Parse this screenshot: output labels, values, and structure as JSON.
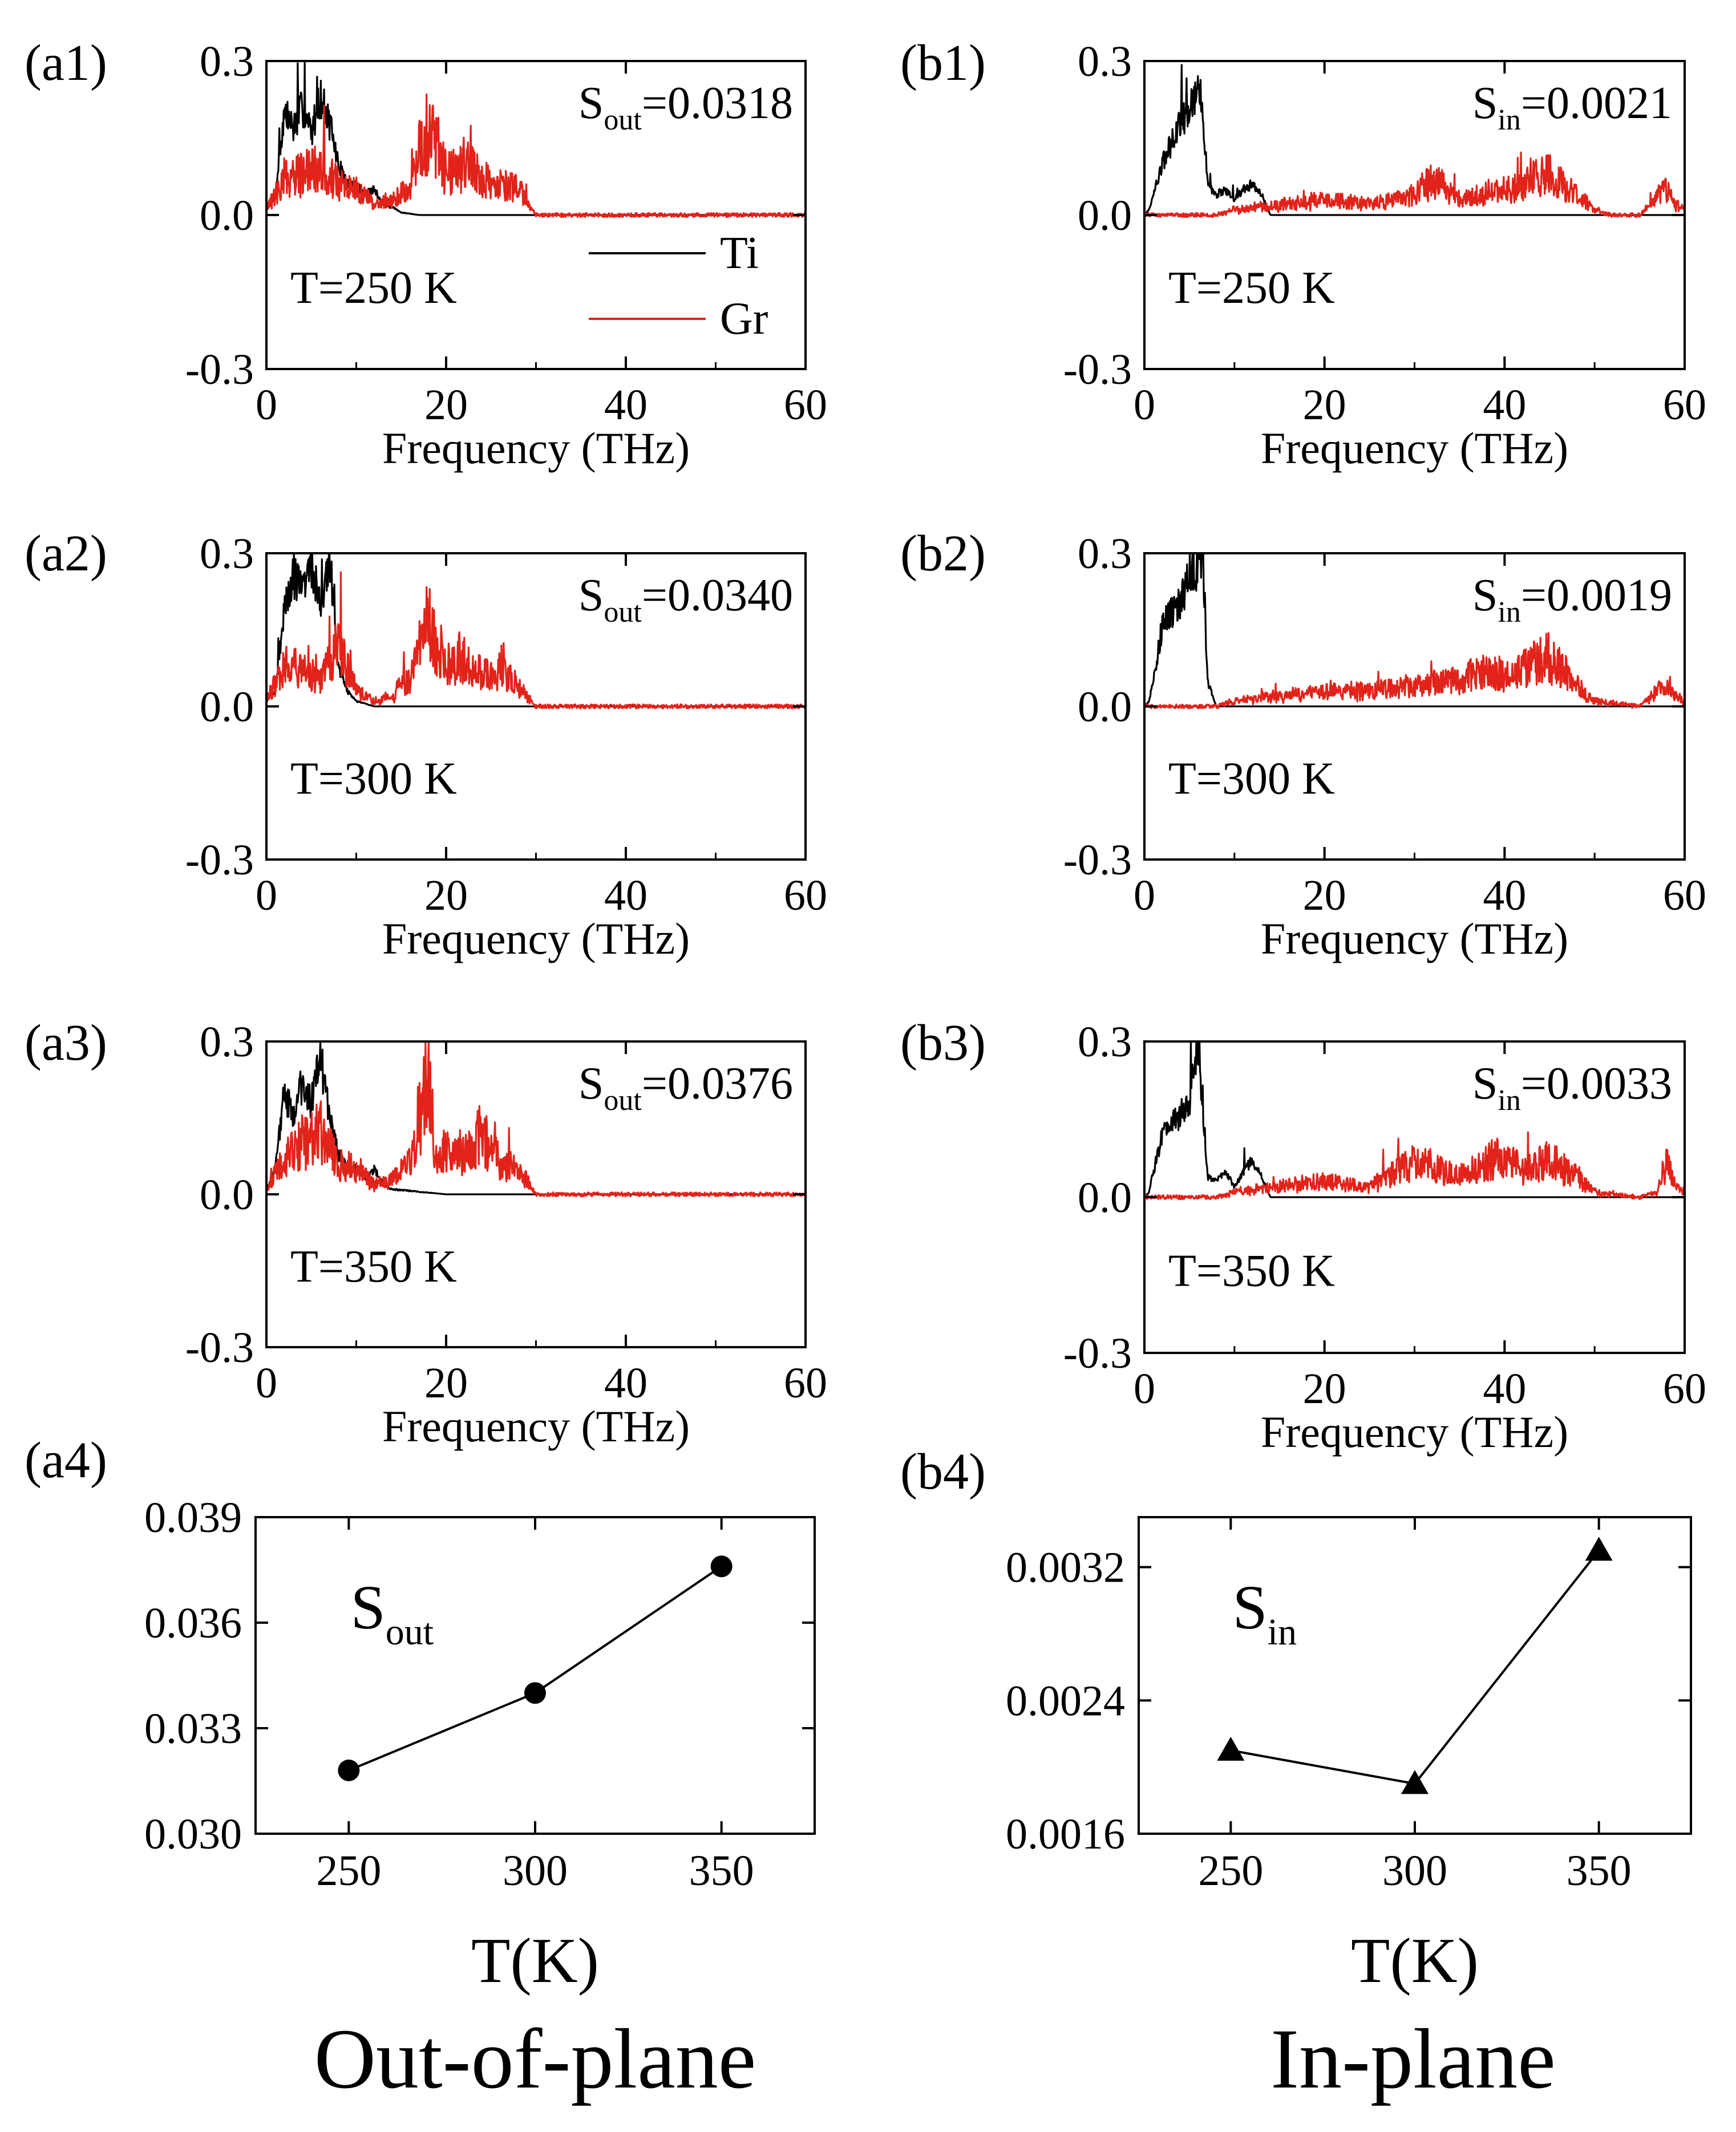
{
  "figure_captions": [
    "Out-of-plane",
    "In-plane"
  ],
  "colors": {
    "ti": "#000000",
    "gr": "#e2231a"
  },
  "chart_data": [
    {
      "id": "a1",
      "type": "line",
      "panel_label": "(a1)",
      "xlabel": "Frequency (THz)",
      "xlim": [
        0,
        60
      ],
      "ylim": [
        -0.3,
        0.3
      ],
      "xticks": [
        "0",
        "20",
        "40",
        "60"
      ],
      "yticks": [
        "0.3",
        "0.0",
        "-0.3"
      ],
      "temperature": "T=250 K",
      "s_main": "S",
      "s_sub": "out",
      "s_value": "=0.0318",
      "legend": [
        "Ti",
        "Gr"
      ],
      "series": [
        {
          "name": "Ti",
          "x": [
            0,
            1,
            2,
            3,
            4,
            5,
            6,
            7,
            8,
            9,
            10,
            11,
            12,
            13,
            14,
            15,
            17,
            20,
            30,
            60
          ],
          "y": [
            0.01,
            0.04,
            0.2,
            0.17,
            0.21,
            0.16,
            0.23,
            0.18,
            0.1,
            0.06,
            0.06,
            0.04,
            0.05,
            0.02,
            0.015,
            0.005,
            0,
            0,
            0,
            0
          ]
        },
        {
          "name": "Gr",
          "x": [
            0,
            2,
            4,
            6,
            8,
            10,
            12,
            14,
            16,
            18,
            20,
            22,
            24,
            26,
            28,
            30,
            40,
            50,
            60
          ],
          "y": [
            0.01,
            0.07,
            0.08,
            0.1,
            0.06,
            0.05,
            0.02,
            0.03,
            0.05,
            0.18,
            0.08,
            0.1,
            0.07,
            0.06,
            0.05,
            0,
            0,
            0,
            0
          ]
        }
      ]
    },
    {
      "id": "b1",
      "type": "line",
      "panel_label": "(b1)",
      "xlabel": "Frequency (THz)",
      "xlim": [
        0,
        60
      ],
      "ylim": [
        -0.3,
        0.3
      ],
      "xticks": [
        "0",
        "20",
        "40",
        "60"
      ],
      "yticks": [
        "0.3",
        "0.0",
        "-0.3"
      ],
      "temperature": "T=250 K",
      "s_main": "S",
      "s_sub": "in",
      "s_value": "=0.0021",
      "series": [
        {
          "name": "Ti",
          "x": [
            0,
            0.5,
            1,
            2,
            3,
            4,
            5,
            6,
            6.5,
            7,
            8,
            9,
            10,
            11,
            12,
            13,
            14,
            20,
            60
          ],
          "y": [
            0,
            0.01,
            0.04,
            0.1,
            0.14,
            0.18,
            0.2,
            0.26,
            0.2,
            0.06,
            0.04,
            0.05,
            0.03,
            0.05,
            0.06,
            0.04,
            0,
            0,
            0
          ]
        },
        {
          "name": "Gr",
          "x": [
            0,
            8,
            10,
            15,
            20,
            25,
            30,
            32,
            35,
            40,
            45,
            48,
            50,
            52,
            55,
            58,
            59,
            60
          ],
          "y": [
            0,
            0,
            0.01,
            0.02,
            0.03,
            0.02,
            0.04,
            0.07,
            0.03,
            0.05,
            0.08,
            0.04,
            0.01,
            0,
            0,
            0.05,
            0.02,
            0.01
          ]
        }
      ]
    },
    {
      "id": "a2",
      "type": "line",
      "panel_label": "(a2)",
      "xlabel": "Frequency (THz)",
      "xlim": [
        0,
        60
      ],
      "ylim": [
        -0.3,
        0.3
      ],
      "xticks": [
        "0",
        "20",
        "40",
        "60"
      ],
      "yticks": [
        "0.3",
        "0.0",
        "-0.3"
      ],
      "temperature": "T=300 K",
      "s_main": "S",
      "s_sub": "out",
      "s_value": "=0.0340",
      "series": [
        {
          "name": "Ti",
          "x": [
            0,
            1,
            2,
            3,
            4,
            5,
            6,
            7,
            8,
            9,
            10,
            12,
            14,
            20,
            30,
            60
          ],
          "y": [
            0.01,
            0.03,
            0.2,
            0.26,
            0.22,
            0.28,
            0.2,
            0.3,
            0.08,
            0.03,
            0.01,
            0,
            0,
            0,
            0,
            0
          ]
        },
        {
          "name": "Gr",
          "x": [
            0,
            2,
            4,
            6,
            8,
            10,
            12,
            14,
            16,
            18,
            20,
            22,
            24,
            26,
            28,
            30,
            40,
            50,
            60
          ],
          "y": [
            0.01,
            0.08,
            0.07,
            0.05,
            0.12,
            0.03,
            0.01,
            0.02,
            0.06,
            0.16,
            0.08,
            0.1,
            0.06,
            0.07,
            0.04,
            0,
            0,
            0,
            0
          ]
        }
      ]
    },
    {
      "id": "b2",
      "type": "line",
      "panel_label": "(b2)",
      "xlabel": "Frequency (THz)",
      "xlim": [
        0,
        60
      ],
      "ylim": [
        -0.3,
        0.3
      ],
      "xticks": [
        "0",
        "20",
        "40",
        "60"
      ],
      "yticks": [
        "0.3",
        "0.0",
        "-0.3"
      ],
      "temperature": "T=300 K",
      "s_main": "S",
      "s_sub": "in",
      "s_value": "=0.0019",
      "series": [
        {
          "name": "Ti",
          "x": [
            0,
            0.5,
            1,
            2,
            3,
            4,
            5,
            6,
            6.5,
            7,
            8,
            10,
            20,
            60
          ],
          "y": [
            0,
            0.01,
            0.05,
            0.16,
            0.18,
            0.2,
            0.25,
            0.28,
            0.3,
            0.05,
            0,
            0,
            0,
            0
          ]
        },
        {
          "name": "Gr",
          "x": [
            0,
            8,
            10,
            15,
            20,
            25,
            30,
            35,
            38,
            40,
            43,
            45,
            48,
            50,
            55,
            58,
            59,
            60
          ],
          "y": [
            0,
            0,
            0.01,
            0.02,
            0.03,
            0.03,
            0.04,
            0.05,
            0.07,
            0.06,
            0.08,
            0.1,
            0.04,
            0.01,
            0,
            0.05,
            0.02,
            0.01
          ]
        }
      ]
    },
    {
      "id": "a3",
      "type": "line",
      "panel_label": "(a3)",
      "xlabel": "Frequency (THz)",
      "xlim": [
        0,
        60
      ],
      "ylim": [
        -0.3,
        0.3
      ],
      "xticks": [
        "0",
        "20",
        "40",
        "60"
      ],
      "yticks": [
        "0.3",
        "0.0",
        "-0.3"
      ],
      "temperature": "T=350 K",
      "s_main": "S",
      "s_sub": "out",
      "s_value": "=0.0376",
      "series": [
        {
          "name": "Ti",
          "x": [
            0,
            1,
            2,
            3,
            4,
            5,
            6,
            7,
            8,
            9,
            10,
            11,
            12,
            13,
            14,
            20,
            30,
            60
          ],
          "y": [
            0.01,
            0.05,
            0.2,
            0.15,
            0.22,
            0.18,
            0.27,
            0.15,
            0.08,
            0.05,
            0.05,
            0.03,
            0.05,
            0.02,
            0.01,
            0,
            0,
            0
          ]
        },
        {
          "name": "Gr",
          "x": [
            0,
            2,
            4,
            6,
            8,
            10,
            12,
            14,
            16,
            18,
            19,
            20,
            22,
            24,
            26,
            28,
            30,
            40,
            50,
            60
          ],
          "y": [
            0.01,
            0.07,
            0.1,
            0.12,
            0.06,
            0.05,
            0.02,
            0.03,
            0.06,
            0.24,
            0.05,
            0.1,
            0.08,
            0.12,
            0.06,
            0.05,
            0,
            0,
            0,
            0
          ]
        }
      ]
    },
    {
      "id": "b3",
      "type": "line",
      "panel_label": "(b3)",
      "xlabel": "Frequency (THz)",
      "xlim": [
        0,
        60
      ],
      "ylim": [
        -0.3,
        0.3
      ],
      "xticks": [
        "0",
        "20",
        "40",
        "60"
      ],
      "yticks": [
        "0.3",
        "0.0",
        "-0.3"
      ],
      "temperature": "T=350 K",
      "s_main": "S",
      "s_sub": "in",
      "s_value": "=0.0033",
      "series": [
        {
          "name": "Ti",
          "x": [
            0,
            0.5,
            1,
            2,
            3,
            4,
            5,
            6,
            6.5,
            7,
            8,
            9,
            10,
            11,
            12,
            13,
            14,
            20,
            60
          ],
          "y": [
            0,
            0.01,
            0.05,
            0.12,
            0.14,
            0.16,
            0.18,
            0.3,
            0.18,
            0.04,
            0.03,
            0.05,
            0.02,
            0.05,
            0.07,
            0.04,
            0,
            0,
            0
          ]
        },
        {
          "name": "Gr",
          "x": [
            0,
            8,
            10,
            15,
            20,
            25,
            30,
            33,
            35,
            40,
            42,
            45,
            48,
            50,
            55,
            57,
            58,
            59,
            60
          ],
          "y": [
            0,
            0,
            0.01,
            0.02,
            0.03,
            0.02,
            0.07,
            0.05,
            0.04,
            0.08,
            0.05,
            0.07,
            0.04,
            0.01,
            0,
            0.01,
            0.07,
            0.02,
            0.01
          ]
        }
      ]
    },
    {
      "id": "a4",
      "type": "scatter",
      "panel_label": "(a4)",
      "xlabel": "T(K)",
      "xlim": [
        225,
        375
      ],
      "ylim": [
        0.03,
        0.039
      ],
      "xticks": [
        "250",
        "300",
        "350"
      ],
      "yticks": [
        "0.039",
        "0.036",
        "0.033",
        "0.030"
      ],
      "s_main": "S",
      "s_sub": "out",
      "series": [
        {
          "name": "S_out",
          "x": [
            250,
            300,
            350
          ],
          "y": [
            0.0318,
            0.034,
            0.0376
          ],
          "marker": "circle"
        }
      ]
    },
    {
      "id": "b4",
      "type": "scatter",
      "panel_label": "(b4)",
      "xlabel": "T(K)",
      "xlim": [
        225,
        375
      ],
      "ylim": [
        0.0016,
        0.0035
      ],
      "xticks": [
        "250",
        "300",
        "350"
      ],
      "yticks": [
        "0.0032",
        "0.0024",
        "0.0016"
      ],
      "s_main": "S",
      "s_sub": "in",
      "series": [
        {
          "name": "S_in",
          "x": [
            250,
            300,
            350
          ],
          "y": [
            0.0021,
            0.0019,
            0.0033
          ],
          "marker": "triangle"
        }
      ]
    }
  ]
}
